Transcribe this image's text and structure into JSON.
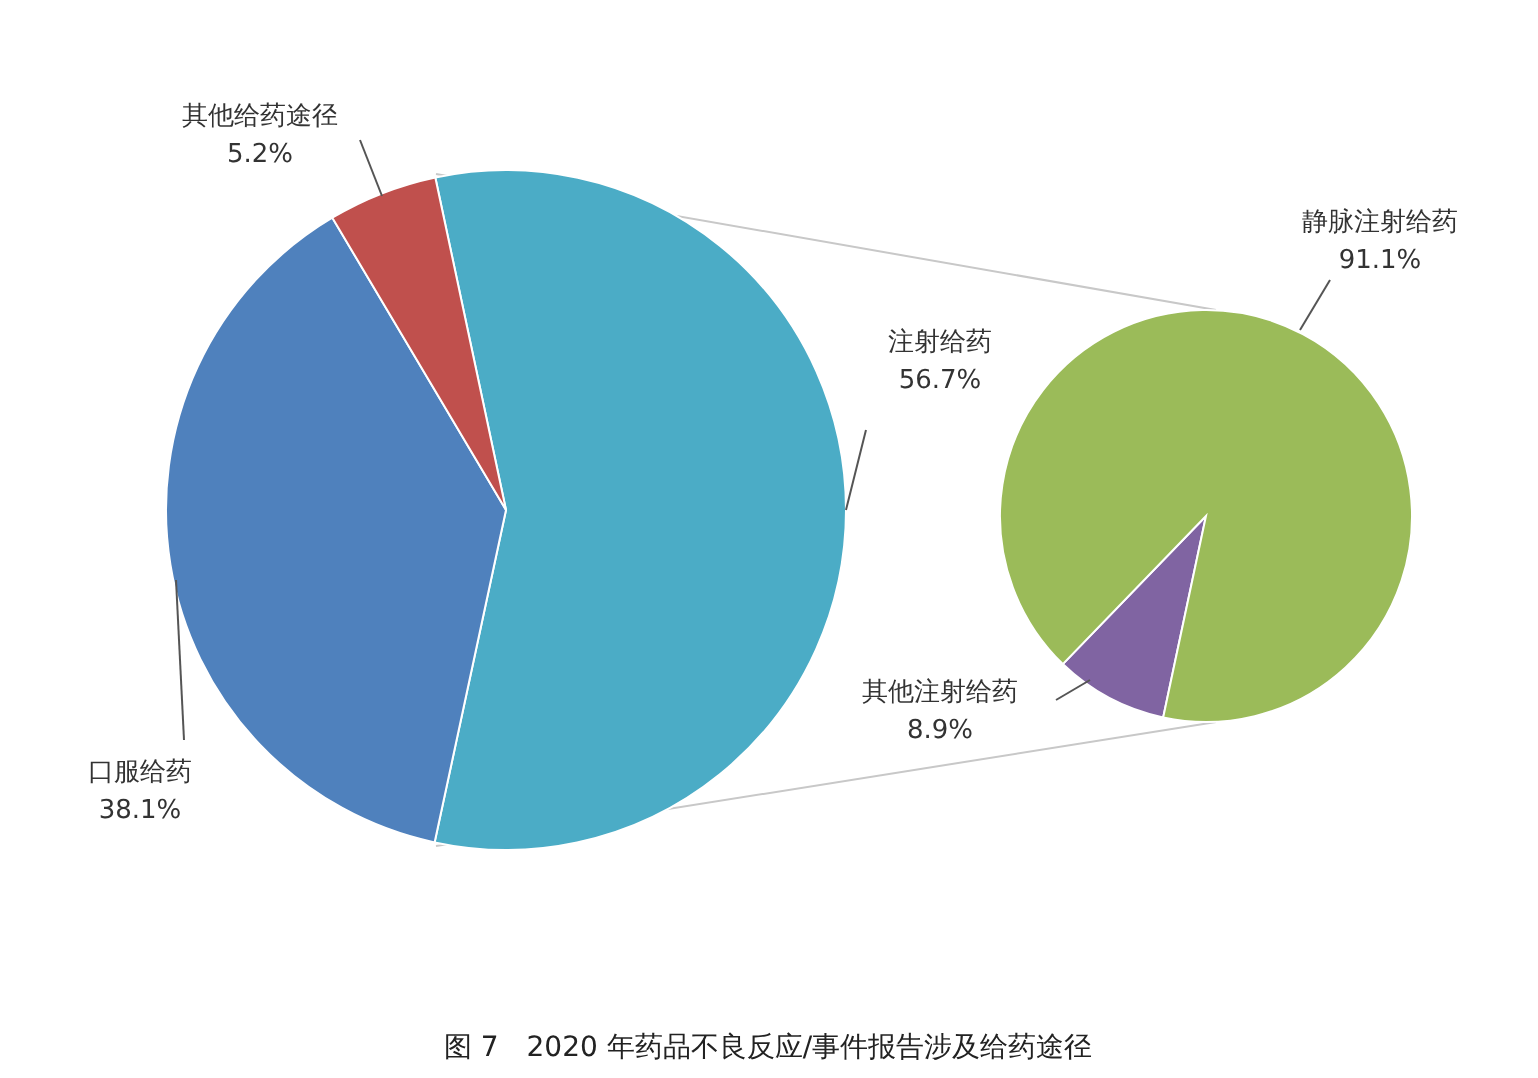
{
  "chart_data": [
    {
      "type": "pie",
      "title": "图 7　2020 年药品不良反应/事件报告涉及给药途径",
      "categories": [
        "注射给药",
        "口服给药",
        "其他给药途径"
      ],
      "values": [
        56.7,
        38.1,
        5.2
      ],
      "colors": [
        "#4bacc6",
        "#4f81bd",
        "#c0504d"
      ],
      "value_labels": [
        "56.7%",
        "38.1%",
        "5.2%"
      ]
    },
    {
      "type": "pie",
      "categories": [
        "其他注射给药",
        "静脉注射给药"
      ],
      "values": [
        8.9,
        91.1
      ],
      "colors": [
        "#8064a2",
        "#9bbb59"
      ],
      "value_labels": [
        "8.9%",
        "91.1%"
      ]
    }
  ]
}
